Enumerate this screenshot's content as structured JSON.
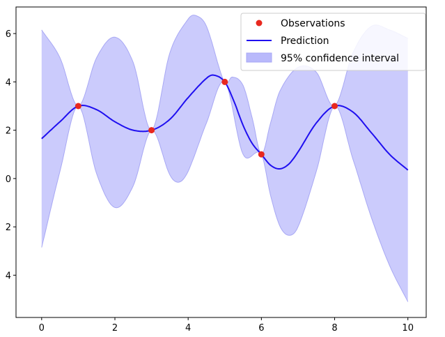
{
  "chart_data": {
    "type": "line",
    "title": "",
    "xlabel": "",
    "ylabel": "",
    "xlim": [
      -0.7,
      10.5
    ],
    "ylim": [
      -5.75,
      7.1
    ],
    "x_ticks": [
      0,
      2,
      4,
      6,
      8,
      10
    ],
    "y_ticks": [
      -4,
      -2,
      0,
      2,
      4,
      6
    ],
    "x_tick_labels": [
      "0",
      "2",
      "4",
      "6",
      "8",
      "10"
    ],
    "y_tick_labels": [
      "4",
      "2",
      "0",
      "2",
      "4",
      "6"
    ],
    "grid": false,
    "legend_position": "top-right",
    "legend": [
      {
        "kind": "marker",
        "label": "Observations"
      },
      {
        "kind": "line",
        "label": "Prediction"
      },
      {
        "kind": "patch",
        "label": "95% confidence interval"
      }
    ],
    "colors": {
      "observations": "#e8281e",
      "prediction": "#1f0ff0",
      "interval_fill": "#b9b9fb",
      "interval_edge": "#a8a8f4"
    },
    "observations": {
      "x": [
        1,
        3,
        5,
        6,
        8
      ],
      "y": [
        3.0,
        2.0,
        4.0,
        1.0,
        3.0
      ]
    },
    "prediction": {
      "x": [
        0,
        0.5,
        1,
        1.5,
        2,
        2.5,
        3,
        3.5,
        4,
        4.5,
        4.7,
        5,
        5.25,
        5.5,
        5.75,
        6,
        6.25,
        6.5,
        6.75,
        7,
        7.5,
        8,
        8.5,
        9,
        9.5,
        10
      ],
      "y": [
        1.65,
        2.35,
        3.0,
        2.85,
        2.35,
        2.0,
        2.0,
        2.45,
        3.35,
        4.15,
        4.28,
        4.0,
        3.2,
        2.2,
        1.45,
        1.0,
        0.55,
        0.4,
        0.6,
        1.1,
        2.3,
        3.0,
        2.75,
        1.9,
        1.0,
        0.35
      ]
    },
    "interval_upper": {
      "x": [
        0,
        0.5,
        1,
        1.5,
        2,
        2.5,
        3,
        3.5,
        4,
        4.2,
        4.5,
        5,
        5.2,
        5.5,
        5.75,
        6,
        6.25,
        6.5,
        7,
        7.5,
        8,
        8.5,
        9,
        9.5,
        10
      ],
      "y": [
        6.15,
        5.0,
        3.0,
        5.0,
        5.85,
        4.8,
        2.0,
        5.2,
        6.6,
        6.75,
        6.3,
        3.95,
        4.2,
        3.85,
        2.5,
        1.0,
        2.3,
        3.6,
        4.6,
        4.4,
        3.0,
        5.2,
        6.3,
        6.15,
        5.8
      ]
    },
    "interval_lower": {
      "x": [
        0,
        0.5,
        1,
        1.5,
        2,
        2.5,
        3,
        3.5,
        3.75,
        4,
        4.5,
        5,
        5.5,
        6,
        6.25,
        6.5,
        6.75,
        7,
        7.5,
        8,
        8.5,
        9,
        9.5,
        10
      ],
      "y": [
        -2.85,
        0.3,
        3.0,
        0.2,
        -1.2,
        -0.3,
        2.0,
        0.15,
        -0.15,
        0.3,
        2.3,
        4.0,
        1.0,
        1.0,
        -0.7,
        -1.95,
        -2.35,
        -2.0,
        0.3,
        3.0,
        0.8,
        -1.6,
        -3.6,
        -5.1
      ]
    }
  }
}
